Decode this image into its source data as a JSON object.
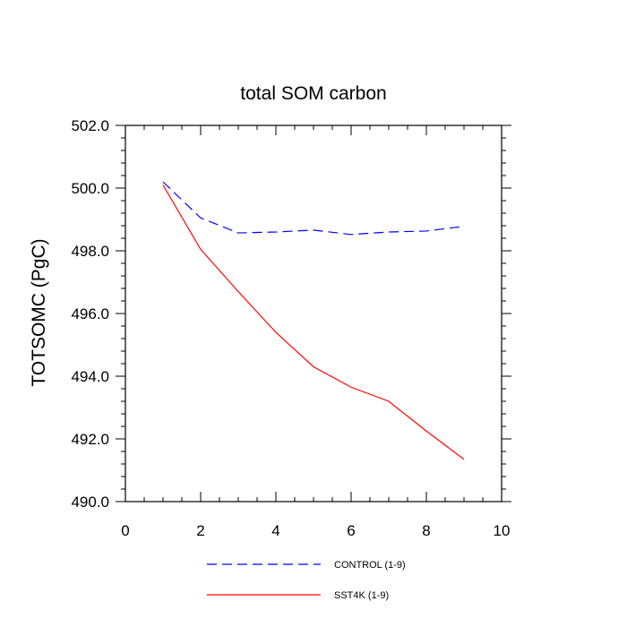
{
  "chart_data": {
    "type": "line",
    "title": "total SOM carbon",
    "xlabel": "",
    "ylabel": "TOTSOMC  (PgC)",
    "xlim": [
      0,
      10
    ],
    "ylim": [
      490,
      502
    ],
    "xticks": [
      0,
      2,
      4,
      6,
      8,
      10
    ],
    "xtick_labels": [
      "0",
      "2",
      "4",
      "6",
      "8",
      "10"
    ],
    "yticks": [
      490,
      492,
      494,
      496,
      498,
      500,
      502
    ],
    "ytick_labels": [
      "490.0",
      "492.0",
      "494.0",
      "496.0",
      "498.0",
      "500.0",
      "502.0"
    ],
    "x_minor_step": 0.5,
    "y_minor_step": 0.4,
    "grid": false,
    "legend_position": "bottom",
    "series": [
      {
        "name": "CONTROL (1-9)",
        "color": "#0000ff",
        "style": "dashed",
        "x": [
          1,
          2,
          3,
          4,
          5,
          6,
          7,
          8,
          9
        ],
        "values": [
          500.2,
          499.05,
          498.57,
          498.6,
          498.66,
          498.52,
          498.6,
          498.63,
          498.78
        ]
      },
      {
        "name": "SST4K (1-9)",
        "color": "#ff0000",
        "style": "solid",
        "x": [
          1,
          2,
          3,
          4,
          5,
          6,
          7,
          8,
          9
        ],
        "values": [
          500.1,
          498.05,
          496.7,
          495.4,
          494.3,
          493.65,
          493.2,
          492.25,
          491.35
        ]
      }
    ]
  }
}
